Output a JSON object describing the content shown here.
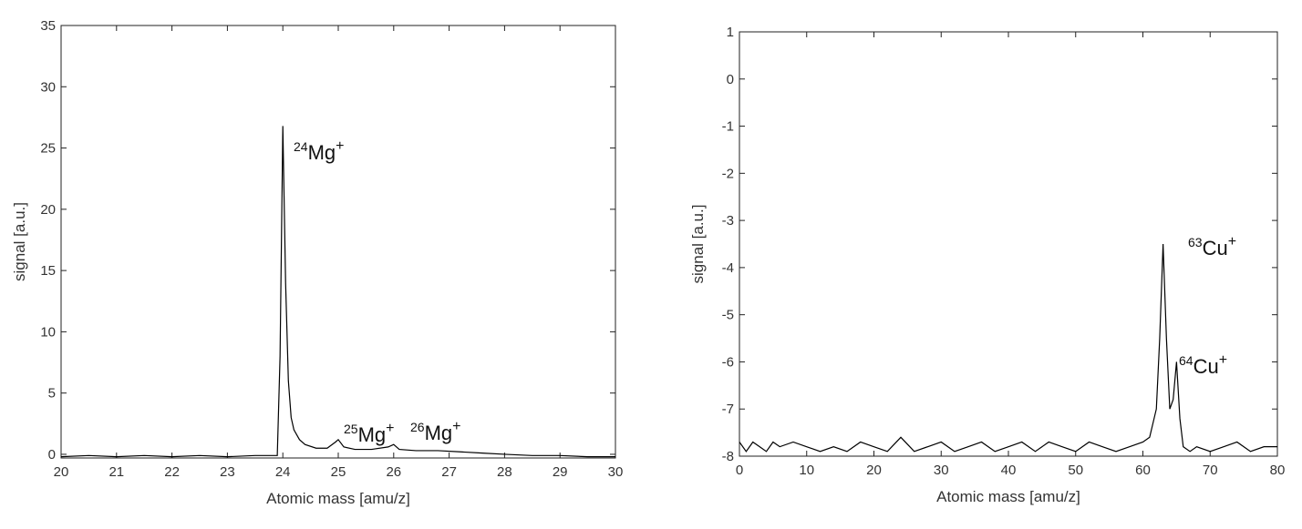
{
  "chart_data": [
    {
      "type": "line",
      "xlabel": "Atomic mass [amu/z]",
      "ylabel": "signal [a.u.]",
      "x": [
        20,
        20.5,
        21,
        21.5,
        22,
        22.5,
        23,
        23.5,
        23.9,
        23.95,
        24.0,
        24.05,
        24.1,
        24.15,
        24.2,
        24.3,
        24.4,
        24.6,
        24.8,
        24.95,
        25.0,
        25.1,
        25.3,
        25.6,
        25.9,
        26.0,
        26.1,
        26.4,
        26.8,
        27.2,
        27.6,
        28,
        28.5,
        29,
        29.5,
        30
      ],
      "values": [
        -0.2,
        -0.1,
        -0.2,
        -0.1,
        -0.2,
        -0.1,
        -0.2,
        -0.1,
        -0.1,
        8,
        26.8,
        14,
        6,
        3,
        2,
        1.2,
        0.8,
        0.5,
        0.5,
        1.0,
        1.2,
        0.6,
        0.4,
        0.4,
        0.6,
        0.8,
        0.4,
        0.3,
        0.3,
        0.2,
        0.1,
        0,
        -0.1,
        -0.1,
        -0.2,
        -0.2
      ],
      "color": "#000000",
      "xlim": [
        20,
        30
      ],
      "xticks": [
        20,
        21,
        22,
        23,
        24,
        25,
        26,
        27,
        28,
        29,
        30
      ],
      "ylim": [
        -0.3,
        35
      ],
      "yticks": [
        0,
        5,
        10,
        15,
        20,
        25,
        30,
        35
      ],
      "annotations": [
        {
          "mass": "24",
          "element": "Mg",
          "charge": "+"
        },
        {
          "mass": "25",
          "element": "Mg",
          "charge": "+"
        },
        {
          "mass": "26",
          "element": "Mg",
          "charge": "+"
        }
      ]
    },
    {
      "type": "line",
      "xlabel": "Atomic mass [amu/z]",
      "ylabel": "signal [a.u.]",
      "x": [
        0,
        1,
        2,
        3,
        4,
        5,
        6,
        8,
        10,
        12,
        14,
        16,
        18,
        20,
        22,
        24,
        26,
        28,
        30,
        32,
        34,
        36,
        38,
        40,
        42,
        44,
        46,
        48,
        50,
        52,
        54,
        56,
        58,
        60,
        61,
        62,
        62.5,
        63,
        63.5,
        64,
        64.5,
        65,
        65.5,
        66,
        67,
        68,
        70,
        72,
        74,
        76,
        78,
        80
      ],
      "values": [
        -7.7,
        -7.9,
        -7.7,
        -7.8,
        -7.9,
        -7.7,
        -7.8,
        -7.7,
        -7.8,
        -7.9,
        -7.8,
        -7.9,
        -7.7,
        -7.8,
        -7.9,
        -7.6,
        -7.9,
        -7.8,
        -7.7,
        -7.9,
        -7.8,
        -7.7,
        -7.9,
        -7.8,
        -7.7,
        -7.9,
        -7.7,
        -7.8,
        -7.9,
        -7.7,
        -7.8,
        -7.9,
        -7.8,
        -7.7,
        -7.6,
        -7.0,
        -5.5,
        -3.5,
        -5.5,
        -7.0,
        -6.8,
        -6.0,
        -7.2,
        -7.8,
        -7.9,
        -7.8,
        -7.9,
        -7.8,
        -7.7,
        -7.9,
        -7.8,
        -7.8
      ],
      "color": "#000000",
      "xlim": [
        0,
        80
      ],
      "xticks": [
        0,
        10,
        20,
        30,
        40,
        50,
        60,
        70,
        80
      ],
      "ylim": [
        -8,
        1
      ],
      "yticks": [
        -8,
        -7,
        -6,
        -5,
        -4,
        -3,
        -2,
        -1,
        0,
        1
      ],
      "annotations": [
        {
          "mass": "63",
          "element": "Cu",
          "charge": "+"
        },
        {
          "mass": "64",
          "element": "Cu",
          "charge": "+"
        }
      ]
    }
  ]
}
